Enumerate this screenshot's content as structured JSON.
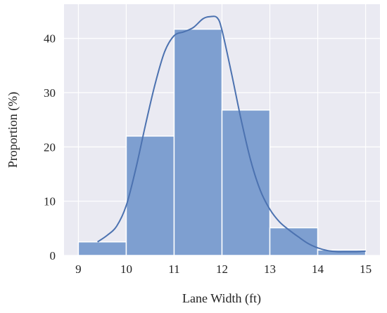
{
  "chart_data": {
    "type": "bar",
    "subtype": "histogram-with-kde",
    "title": "",
    "xlabel": "Lane Width (ft)",
    "ylabel": "Proportion (%)",
    "xlim": [
      8.7,
      15.3
    ],
    "ylim": [
      0,
      46.3
    ],
    "xticks": [
      9,
      10,
      11,
      12,
      13,
      14,
      15
    ],
    "yticks": [
      0,
      10,
      20,
      30,
      40
    ],
    "grid": true,
    "background": "#eaeaf2",
    "bar_color": "#7e9fd0",
    "line_color": "#4c72b0",
    "bins": [
      {
        "start": 9,
        "end": 10,
        "value": 2.5
      },
      {
        "start": 10,
        "end": 11,
        "value": 22.0
      },
      {
        "start": 11,
        "end": 12,
        "value": 41.7
      },
      {
        "start": 12,
        "end": 13,
        "value": 26.8
      },
      {
        "start": 13,
        "end": 14,
        "value": 5.1
      },
      {
        "start": 14,
        "end": 15,
        "value": 1.0
      }
    ],
    "kde": {
      "x": [
        9.4,
        9.6,
        9.8,
        10.0,
        10.2,
        10.4,
        10.6,
        10.8,
        11.0,
        11.2,
        11.4,
        11.6,
        11.75,
        11.9,
        12.0,
        12.2,
        12.4,
        12.6,
        12.8,
        13.0,
        13.2,
        13.4,
        13.6,
        13.8,
        14.0,
        14.2,
        14.4,
        14.6,
        14.8,
        15.0
      ],
      "y": [
        2.5,
        3.7,
        5.4,
        9.2,
        16.0,
        24.0,
        31.5,
        37.5,
        40.5,
        41.2,
        42.0,
        43.6,
        44.0,
        43.8,
        41.5,
        33.5,
        25.0,
        17.5,
        12.0,
        8.5,
        6.2,
        4.7,
        3.4,
        2.2,
        1.4,
        0.9,
        0.7,
        0.7,
        0.7,
        0.8
      ]
    }
  }
}
